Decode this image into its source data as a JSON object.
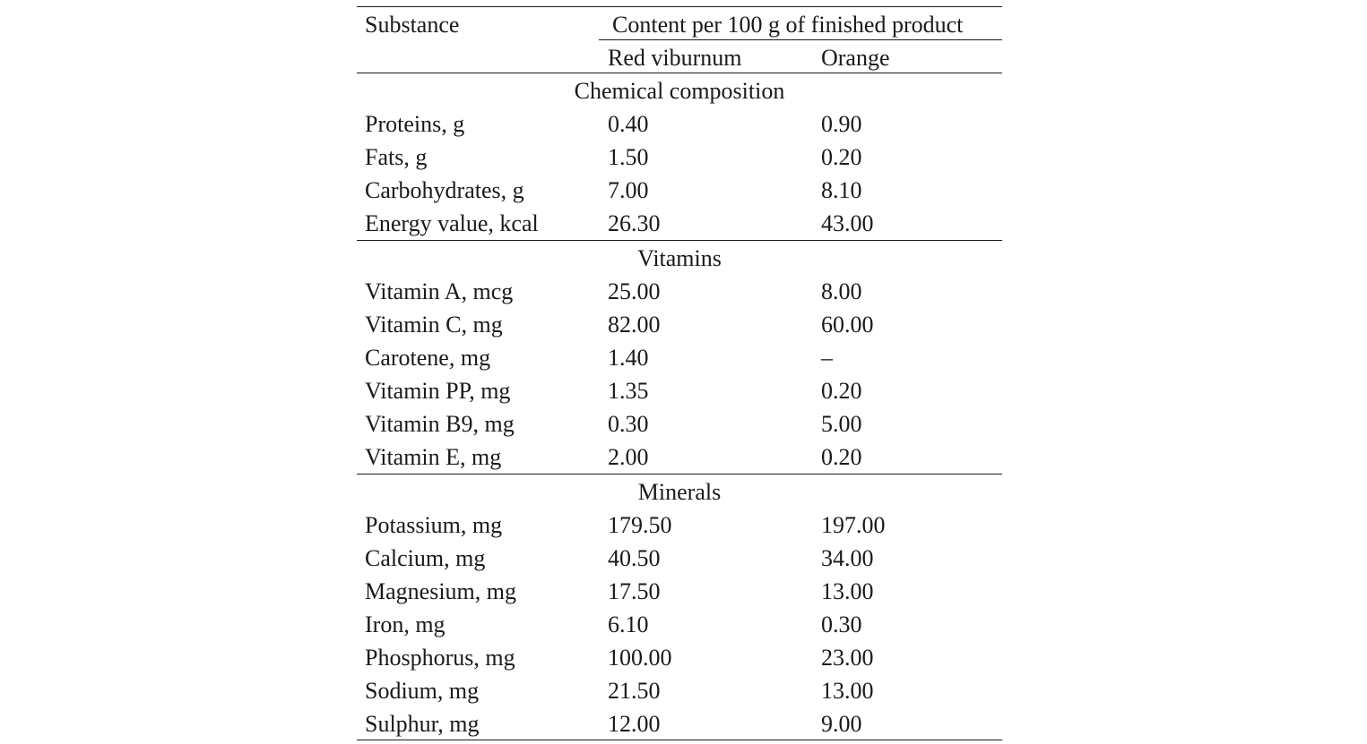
{
  "header": {
    "substance_label": "Substance",
    "content_label": "Content per 100 g of finished product",
    "col_red": "Red viburnum",
    "col_orange": "Orange"
  },
  "sections": [
    {
      "title": "Chemical composition",
      "rows": [
        {
          "substance": "Proteins, g",
          "red": "0.40",
          "orange": "0.90"
        },
        {
          "substance": "Fats, g",
          "red": "1.50",
          "orange": "0.20"
        },
        {
          "substance": "Carbohydrates, g",
          "red": "7.00",
          "orange": "8.10"
        },
        {
          "substance": "Energy value, kcal",
          "red": "26.30",
          "orange": "43.00"
        }
      ]
    },
    {
      "title": "Vitamins",
      "rows": [
        {
          "substance": "Vitamin A, mcg",
          "red": "25.00",
          "orange": "8.00"
        },
        {
          "substance": "Vitamin C, mg",
          "red": "82.00",
          "orange": "60.00"
        },
        {
          "substance": "Carotene, mg",
          "red": "1.40",
          "orange": "–"
        },
        {
          "substance": "Vitamin PP, mg",
          "red": "1.35",
          "orange": "0.20"
        },
        {
          "substance": "Vitamin B9, mg",
          "red": "0.30",
          "orange": "5.00"
        },
        {
          "substance": "Vitamin E, mg",
          "red": "2.00",
          "orange": "0.20"
        }
      ]
    },
    {
      "title": "Minerals",
      "rows": [
        {
          "substance": "Potassium, mg",
          "red": "179.50",
          "orange": "197.00"
        },
        {
          "substance": "Calcium, mg",
          "red": "40.50",
          "orange": "34.00"
        },
        {
          "substance": "Magnesium, mg",
          "red": "17.50",
          "orange": "13.00"
        },
        {
          "substance": "Iron, mg",
          "red": "6.10",
          "orange": "0.30"
        },
        {
          "substance": "Phosphorus, mg",
          "red": "100.00",
          "orange": "23.00"
        },
        {
          "substance": "Sodium, mg",
          "red": "21.50",
          "orange": "13.00"
        },
        {
          "substance": "Sulphur, mg",
          "red": "12.00",
          "orange": "9.00"
        }
      ]
    }
  ]
}
